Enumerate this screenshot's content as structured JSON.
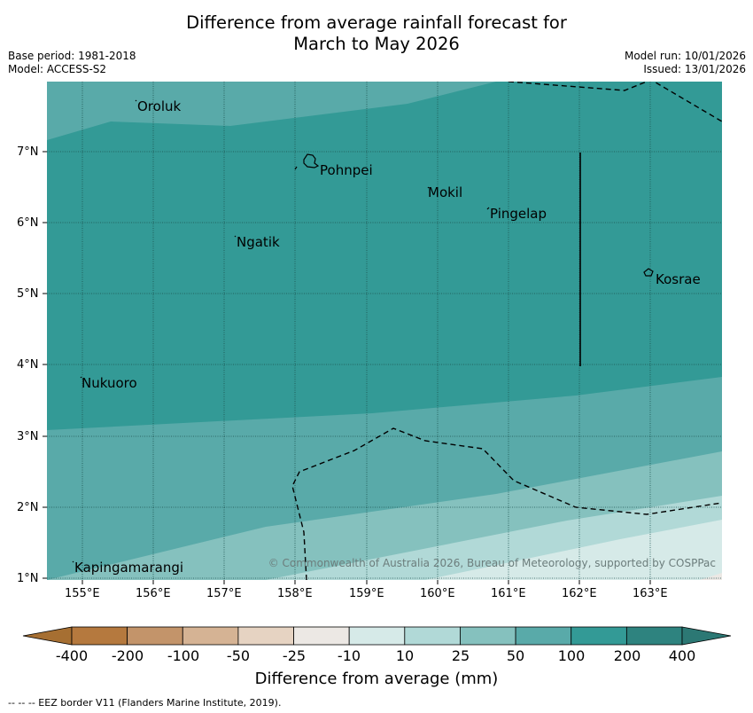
{
  "title": {
    "line1": "Difference from average rainfall forecast for",
    "line2": "March to May 2026"
  },
  "meta": {
    "base_period": "Base period: 1981-2018",
    "model": "Model: ACCESS-S2",
    "model_run": "Model run: 10/01/2026",
    "issued": "Issued: 13/01/2026"
  },
  "map": {
    "lat_labels": [
      "7°N",
      "6°N",
      "5°N",
      "4°N",
      "3°N",
      "2°N",
      "1°N"
    ],
    "lon_labels": [
      "155°E",
      "156°E",
      "157°E",
      "158°E",
      "159°E",
      "160°E",
      "161°E",
      "162°E",
      "163°E"
    ],
    "places": [
      "Oroluk",
      "Pohnpei",
      "Mokil",
      "Pingelap",
      "Ngatik",
      "Kosrae",
      "Nukuoro",
      "Kapingamarangi"
    ],
    "copyright": "© Commonwealth of Australia 2026, Bureau of Meteorology, supported by COSPPac"
  },
  "colorbar": {
    "labels": [
      "-400",
      "-200",
      "-100",
      "-50",
      "-25",
      "-10",
      "10",
      "25",
      "50",
      "100",
      "200",
      "400"
    ],
    "colors": [
      "#b5793e",
      "#c3946a",
      "#d5b394",
      "#e6d3c2",
      "#ece8e4",
      "#ffffff",
      "#d6eae8",
      "#b1d9d7",
      "#85c1be",
      "#59aaa9",
      "#339a96",
      "#2e837f"
    ],
    "label": "Difference from average (mm)"
  },
  "footer": {
    "legend": "--  --  -- EEZ border V11 (Flanders Marine Institute, 2019)."
  }
}
